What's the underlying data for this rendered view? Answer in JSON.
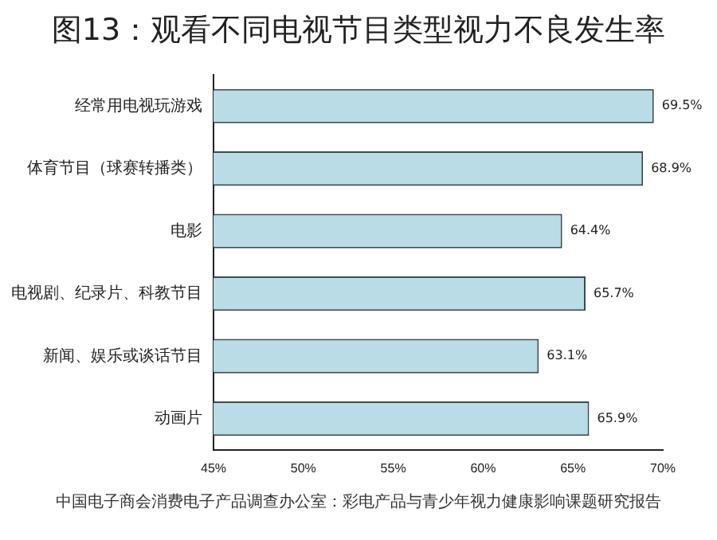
{
  "chart_data": {
    "type": "bar",
    "orientation": "horizontal",
    "title": "图13：观看不同电视节目类型视力不良发生率",
    "categories": [
      "经常用电视玩游戏",
      "体育节目（球赛转播类）",
      "电影",
      "电视剧、纪录片、科教节目",
      "新闻、娱乐或谈话节目",
      "动画片"
    ],
    "values": [
      69.5,
      68.9,
      64.4,
      65.7,
      63.1,
      65.9
    ],
    "value_labels": [
      "69.5%",
      "68.9%",
      "64.4%",
      "65.7%",
      "63.1%",
      "65.9%"
    ],
    "color": "#b9dce6",
    "xlim": [
      45,
      70
    ],
    "xticks": [
      {
        "value": 45,
        "label": "45%"
      },
      {
        "value": 50,
        "label": "50%"
      },
      {
        "value": 55,
        "label": "55%"
      },
      {
        "value": 60,
        "label": "60%"
      },
      {
        "value": 65,
        "label": "65%"
      },
      {
        "value": 70,
        "label": "70%"
      }
    ],
    "grid": false,
    "legend": false,
    "annotations": [
      "中国电子商会消费电子产品调查办公室：彩电产品与青少年视力健康影响课题研究报告"
    ]
  }
}
